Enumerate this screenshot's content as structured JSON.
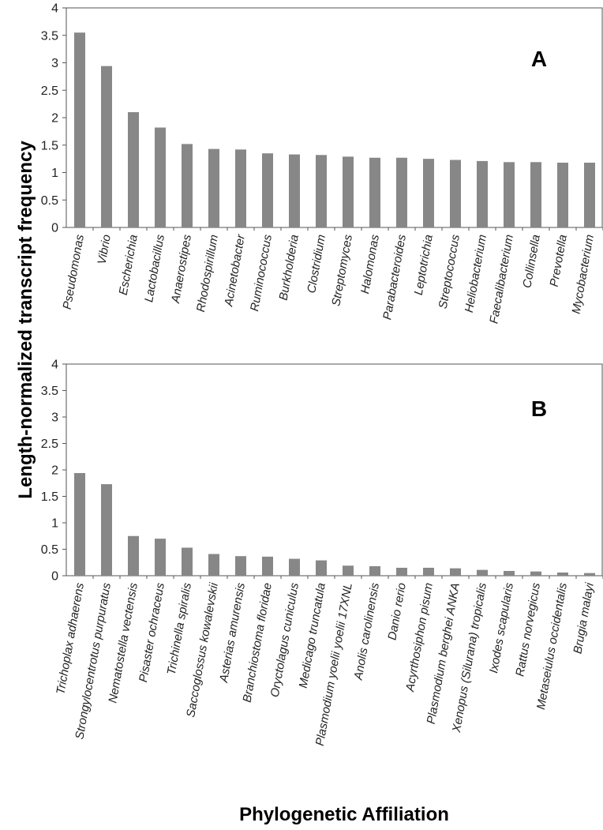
{
  "ylabel": "Length-normalized transcript frequency",
  "xlabel": "Phylogenetic Affiliation",
  "colors": {
    "bar": "#878787",
    "frame": "#555555"
  },
  "chart_data": [
    {
      "type": "bar",
      "panel_label": "A",
      "ylim": [
        0,
        4
      ],
      "yticks": [
        "0",
        "0.5",
        "1",
        "1.5",
        "2",
        "2.5",
        "3",
        "3.5",
        "4"
      ],
      "categories": [
        "Pseudomonas",
        "Vibrio",
        "Escherichia",
        "Lactobacillus",
        "Anaerostipes",
        "Rhodospirillum",
        "Acinetobacter",
        "Ruminococcus",
        "Burkholderia",
        "Clostridium",
        "Streptomyces",
        "Halomonas",
        "Parabacteroides",
        "Leptotrichia",
        "Streptococcus",
        "Heliobacterium",
        "Faecalibacterium",
        "Collinsella",
        "Prevotella",
        "Mycobacterium"
      ],
      "values": [
        3.55,
        2.94,
        2.1,
        1.82,
        1.52,
        1.43,
        1.42,
        1.35,
        1.33,
        1.32,
        1.29,
        1.27,
        1.27,
        1.25,
        1.23,
        1.21,
        1.19,
        1.19,
        1.18,
        1.18
      ]
    },
    {
      "type": "bar",
      "panel_label": "B",
      "ylim": [
        0,
        4
      ],
      "yticks": [
        "0",
        "0.5",
        "1",
        "1.5",
        "2",
        "2.5",
        "3",
        "3.5",
        "4"
      ],
      "categories": [
        "Trichoplax adhaerens",
        "Strongylocentrotus purpuratus",
        "Nematostella vectensis",
        "Pisaster ochraceus",
        "Trichinella spiralis",
        "Saccoglossus kowalevskii",
        "Asterias amurensis",
        "Branchiostoma floridae",
        "Oryctolagus cuniculus",
        "Medicago truncatula",
        "Plasmodium yoelii yoelii 17XNL",
        "Anolis carolinensis",
        "Danio rerio",
        "Acyrthosiphon pisum",
        "Plasmodium berghei ANKA",
        "Xenopus (Silurana) tropicalis",
        "Ixodes scapularis",
        "Rattus norvegicus",
        "Metaseiulus occidentalis",
        "Brugia malayi"
      ],
      "values": [
        1.94,
        1.73,
        0.75,
        0.7,
        0.53,
        0.41,
        0.37,
        0.36,
        0.32,
        0.29,
        0.19,
        0.18,
        0.15,
        0.15,
        0.14,
        0.11,
        0.09,
        0.08,
        0.06,
        0.05
      ]
    }
  ]
}
